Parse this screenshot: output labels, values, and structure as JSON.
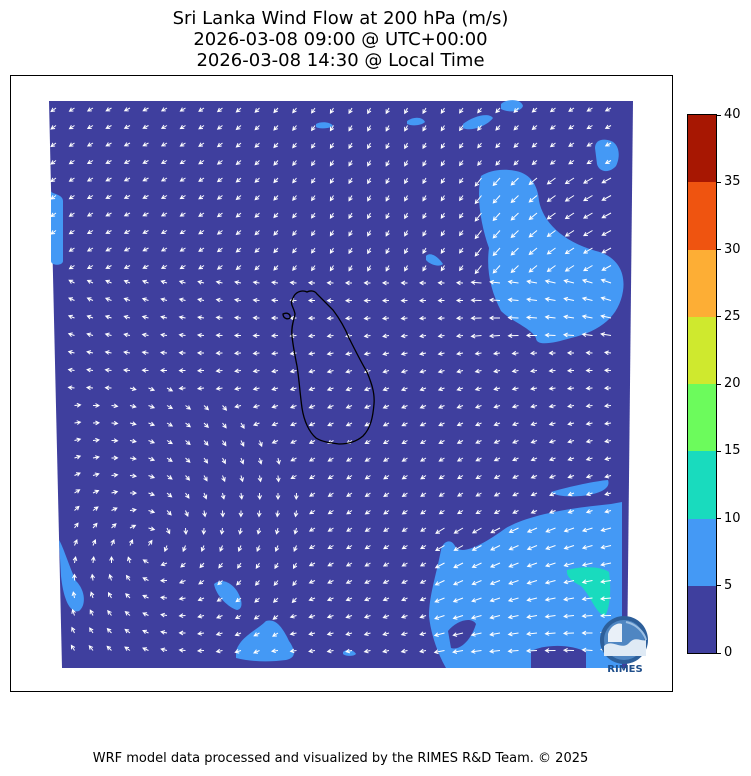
{
  "title": {
    "line1": "Sri Lanka Wind Flow at 200 hPa (m/s)",
    "line2": "2026-03-08 09:00 @ UTC+00:00",
    "line3": "2026-03-08 14:30 @ Local Time"
  },
  "colorbar": {
    "ticks": [
      "0",
      "5",
      "10",
      "15",
      "20",
      "25",
      "30",
      "35",
      "40"
    ],
    "colors": [
      "#3f3f9e",
      "#4499f5",
      "#19dbbe",
      "#6cfb5c",
      "#cfe92e",
      "#fdae35",
      "#ef5410",
      "#a71702"
    ]
  },
  "map": {
    "background_color": "#3f3f9e",
    "strong_wind_color": "#4499f5",
    "very_strong_wind_color": "#19dbbe",
    "coastline_color": "#000000",
    "arrow_color": "#ffffff"
  },
  "logo": {
    "text": "RIMES",
    "icon": "rimes-logo-icon"
  },
  "footer": "WRF model data processed and visualized by the RIMES R&D Team. © 2025"
}
